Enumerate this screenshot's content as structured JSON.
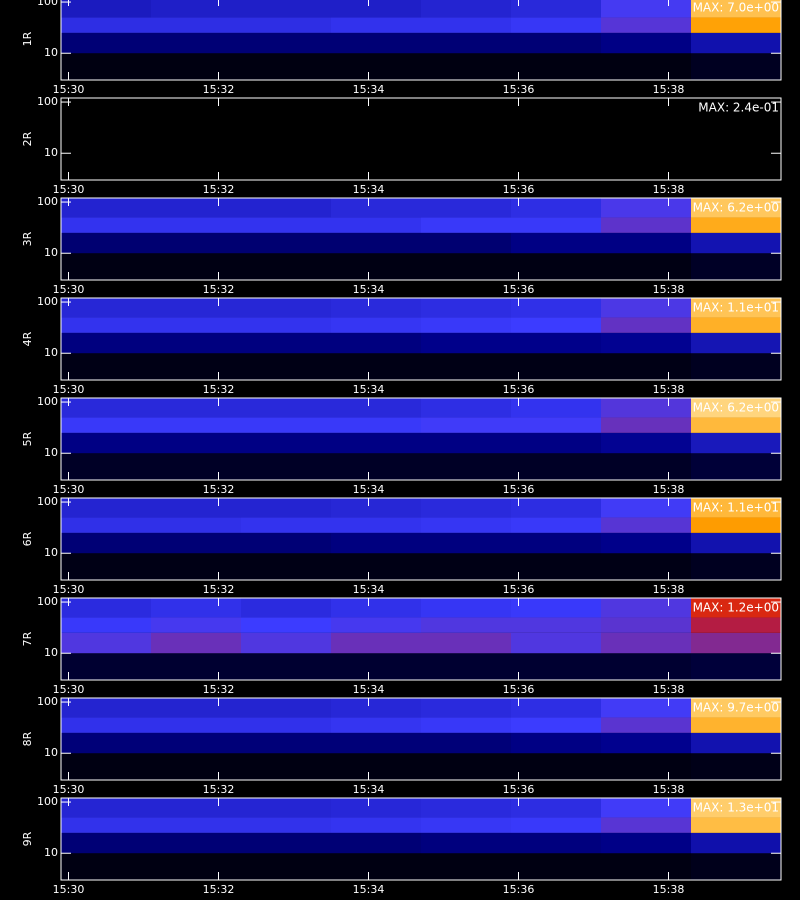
{
  "chart_data": [
    {
      "type": "heatmap",
      "ylabel": "1R",
      "max_label": "MAX: 7.0e+00",
      "max": 7.0,
      "log_y": true,
      "xlim": [
        929.9,
        939.5
      ],
      "xticks": [
        {
          "value": 930,
          "label": "15:30"
        },
        {
          "value": 932,
          "label": "15:32"
        },
        {
          "value": 934,
          "label": "15:34"
        },
        {
          "value": 936,
          "label": "15:36"
        },
        {
          "value": 938,
          "label": "15:38"
        }
      ],
      "ylim": [
        3,
        120
      ],
      "yticks": [
        10,
        100
      ],
      "xbins": [
        929.9,
        931.1,
        932.3,
        933.5,
        934.7,
        935.9,
        937.1,
        938.3,
        939.5
      ],
      "ybins": [
        3,
        10,
        25,
        50,
        120
      ],
      "values": [
        [
          0.1,
          0.1,
          0.1,
          0.1,
          0.1,
          0.1,
          0.1,
          0.2
        ],
        [
          0.7,
          0.7,
          0.7,
          0.7,
          0.7,
          0.7,
          0.8,
          1.2
        ],
        [
          1.8,
          1.8,
          1.8,
          1.9,
          1.9,
          2,
          2.4,
          5.5
        ],
        [
          1.4,
          1.5,
          1.5,
          1.5,
          1.6,
          1.7,
          2.2,
          6
        ]
      ]
    },
    {
      "type": "heatmap",
      "ylabel": "2R",
      "max_label": "MAX: 2.4e-01",
      "max": 0.24,
      "log_y": true,
      "xlim": [
        929.9,
        939.5
      ],
      "xticks": [
        {
          "value": 930,
          "label": "15:30"
        },
        {
          "value": 932,
          "label": "15:32"
        },
        {
          "value": 934,
          "label": "15:34"
        },
        {
          "value": 936,
          "label": "15:36"
        },
        {
          "value": 938,
          "label": "15:38"
        }
      ],
      "ylim": [
        3,
        120
      ],
      "yticks": [
        10,
        100
      ],
      "xbins": [
        929.9,
        931.1,
        932.3,
        933.5,
        934.7,
        935.9,
        937.1,
        938.3,
        939.5
      ],
      "ybins": [
        3,
        10,
        25,
        50,
        120
      ],
      "values": [
        [
          0,
          0,
          0,
          0,
          0,
          0,
          0,
          0
        ],
        [
          0,
          0,
          0,
          0,
          0,
          0,
          0,
          0
        ],
        [
          0,
          0,
          0,
          0,
          0,
          0,
          0,
          0
        ],
        [
          0,
          0,
          0,
          0,
          0,
          0,
          0,
          0
        ]
      ]
    },
    {
      "type": "heatmap",
      "ylabel": "3R",
      "max_label": "MAX: 6.2e+00",
      "max": 6.2,
      "log_y": true,
      "xlim": [
        929.9,
        939.5
      ],
      "xticks": [
        {
          "value": 930,
          "label": "15:30"
        },
        {
          "value": 932,
          "label": "15:32"
        },
        {
          "value": 934,
          "label": "15:34"
        },
        {
          "value": 936,
          "label": "15:36"
        },
        {
          "value": 938,
          "label": "15:38"
        }
      ],
      "ylim": [
        3,
        120
      ],
      "yticks": [
        10,
        100
      ],
      "xbins": [
        929.9,
        931.1,
        932.3,
        933.5,
        934.7,
        935.9,
        937.1,
        938.3,
        939.5
      ],
      "ybins": [
        3,
        10,
        25,
        50,
        120
      ],
      "values": [
        [
          0.1,
          0.1,
          0.1,
          0.1,
          0.1,
          0.1,
          0.1,
          0.2
        ],
        [
          0.6,
          0.6,
          0.6,
          0.6,
          0.6,
          0.7,
          0.7,
          1.1
        ],
        [
          1.7,
          1.7,
          1.7,
          1.7,
          1.8,
          1.8,
          2.2,
          5
        ],
        [
          1.4,
          1.4,
          1.4,
          1.5,
          1.5,
          1.6,
          2,
          5.4
        ]
      ]
    },
    {
      "type": "heatmap",
      "ylabel": "4R",
      "max_label": "MAX: 1.1e+01",
      "max": 11,
      "log_y": true,
      "xlim": [
        929.9,
        939.5
      ],
      "xticks": [
        {
          "value": 930,
          "label": "15:30"
        },
        {
          "value": 932,
          "label": "15:32"
        },
        {
          "value": 934,
          "label": "15:34"
        },
        {
          "value": 936,
          "label": "15:36"
        },
        {
          "value": 938,
          "label": "15:38"
        }
      ],
      "ylim": [
        3,
        120
      ],
      "yticks": [
        10,
        100
      ],
      "xbins": [
        929.9,
        931.1,
        932.3,
        933.5,
        934.7,
        935.9,
        937.1,
        938.3,
        939.5
      ],
      "ybins": [
        3,
        10,
        25,
        50,
        120
      ],
      "values": [
        [
          0.2,
          0.2,
          0.2,
          0.2,
          0.2,
          0.2,
          0.2,
          0.3
        ],
        [
          1.2,
          1.2,
          1.2,
          1.2,
          1.3,
          1.3,
          1.4,
          2
        ],
        [
          3,
          3,
          3,
          3.1,
          3.2,
          3.3,
          4,
          9
        ],
        [
          2.6,
          2.6,
          2.6,
          2.7,
          2.8,
          2.9,
          3.6,
          9.5
        ]
      ]
    },
    {
      "type": "heatmap",
      "ylabel": "5R",
      "max_label": "MAX: 6.2e+00",
      "max": 6.2,
      "log_y": true,
      "xlim": [
        929.9,
        939.5
      ],
      "xticks": [
        {
          "value": 930,
          "label": "15:30"
        },
        {
          "value": 932,
          "label": "15:32"
        },
        {
          "value": 934,
          "label": "15:34"
        },
        {
          "value": 936,
          "label": "15:36"
        },
        {
          "value": 938,
          "label": "15:38"
        }
      ],
      "ylim": [
        3,
        120
      ],
      "yticks": [
        10,
        100
      ],
      "xbins": [
        929.9,
        931.1,
        932.3,
        933.5,
        934.7,
        935.9,
        937.1,
        938.3,
        939.5
      ],
      "ybins": [
        3,
        10,
        25,
        50,
        120
      ],
      "values": [
        [
          0.2,
          0.2,
          0.2,
          0.2,
          0.2,
          0.2,
          0.2,
          0.3
        ],
        [
          0.7,
          0.7,
          0.7,
          0.7,
          0.7,
          0.7,
          0.8,
          1.2
        ],
        [
          1.8,
          1.8,
          1.8,
          1.8,
          1.9,
          1.9,
          2.3,
          5.2
        ],
        [
          1.5,
          1.5,
          1.5,
          1.5,
          1.6,
          1.7,
          2.1,
          5.6
        ]
      ]
    },
    {
      "type": "heatmap",
      "ylabel": "6R",
      "max_label": "MAX: 1.1e+01",
      "max": 11,
      "log_y": true,
      "xlim": [
        929.9,
        939.5
      ],
      "xticks": [
        {
          "value": 930,
          "label": "15:30"
        },
        {
          "value": 932,
          "label": "15:32"
        },
        {
          "value": 934,
          "label": "15:34"
        },
        {
          "value": 936,
          "label": "15:36"
        },
        {
          "value": 938,
          "label": "15:38"
        }
      ],
      "ylim": [
        3,
        120
      ],
      "yticks": [
        10,
        100
      ],
      "xbins": [
        929.9,
        931.1,
        932.3,
        933.5,
        934.7,
        935.9,
        937.1,
        938.3,
        939.5
      ],
      "ybins": [
        3,
        10,
        25,
        50,
        120
      ],
      "values": [
        [
          0.2,
          0.2,
          0.2,
          0.2,
          0.2,
          0.2,
          0.2,
          0.3
        ],
        [
          1.1,
          1.1,
          1.1,
          1.2,
          1.2,
          1.2,
          1.3,
          1.9
        ],
        [
          2.9,
          2.9,
          3,
          3,
          3.1,
          3.2,
          3.8,
          8.5
        ],
        [
          2.5,
          2.5,
          2.5,
          2.6,
          2.7,
          2.8,
          3.4,
          9.2
        ]
      ]
    },
    {
      "type": "heatmap",
      "ylabel": "7R",
      "max_label": "MAX: 1.2e+00",
      "max": 1.2,
      "log_y": true,
      "xlim": [
        929.9,
        939.5
      ],
      "xticks": [
        {
          "value": 930,
          "label": "15:30"
        },
        {
          "value": 932,
          "label": "15:32"
        },
        {
          "value": 934,
          "label": "15:34"
        },
        {
          "value": 936,
          "label": "15:36"
        },
        {
          "value": 938,
          "label": "15:38"
        }
      ],
      "ylim": [
        3,
        120
      ],
      "yticks": [
        10,
        100
      ],
      "xbins": [
        929.9,
        931.1,
        932.3,
        933.5,
        934.7,
        935.9,
        937.1,
        938.3,
        939.5
      ],
      "ybins": [
        3,
        10,
        25,
        50,
        120
      ],
      "values": [
        [
          0.05,
          0.05,
          0.05,
          0.05,
          0.05,
          0.05,
          0.05,
          0.06
        ],
        [
          0.4,
          0.45,
          0.4,
          0.45,
          0.45,
          0.4,
          0.45,
          0.5
        ],
        [
          0.35,
          0.38,
          0.36,
          0.38,
          0.4,
          0.4,
          0.42,
          0.6
        ],
        [
          0.3,
          0.32,
          0.3,
          0.32,
          0.34,
          0.35,
          0.4,
          0.7
        ]
      ]
    },
    {
      "type": "heatmap",
      "ylabel": "8R",
      "max_label": "MAX: 9.7e+00",
      "max": 9.7,
      "log_y": true,
      "xlim": [
        929.9,
        939.5
      ],
      "xticks": [
        {
          "value": 930,
          "label": "15:30"
        },
        {
          "value": 932,
          "label": "15:32"
        },
        {
          "value": 934,
          "label": "15:34"
        },
        {
          "value": 936,
          "label": "15:36"
        },
        {
          "value": 938,
          "label": "15:38"
        }
      ],
      "ylim": [
        3,
        120
      ],
      "yticks": [
        10,
        100
      ],
      "xbins": [
        929.9,
        931.1,
        932.3,
        933.5,
        934.7,
        935.9,
        937.1,
        938.3,
        939.5
      ],
      "ybins": [
        3,
        10,
        25,
        50,
        120
      ],
      "values": [
        [
          0.15,
          0.15,
          0.15,
          0.15,
          0.15,
          0.15,
          0.15,
          0.2
        ],
        [
          1,
          1,
          1,
          1,
          1,
          1.1,
          1.2,
          1.7
        ],
        [
          2.6,
          2.6,
          2.6,
          2.7,
          2.8,
          2.9,
          3.4,
          8
        ],
        [
          2.2,
          2.2,
          2.2,
          2.3,
          2.4,
          2.5,
          3,
          8.5
        ]
      ]
    },
    {
      "type": "heatmap",
      "ylabel": "9R",
      "max_label": "MAX: 1.3e+01",
      "max": 13,
      "log_y": true,
      "xlim": [
        929.9,
        939.5
      ],
      "xticks": [
        {
          "value": 930,
          "label": "15:30"
        },
        {
          "value": 932,
          "label": "15:32"
        },
        {
          "value": 934,
          "label": "15:34"
        },
        {
          "value": 936,
          "label": "15:36"
        },
        {
          "value": 938,
          "label": "15:38"
        }
      ],
      "ylim": [
        3,
        120
      ],
      "yticks": [
        10,
        100
      ],
      "xbins": [
        929.9,
        931.1,
        932.3,
        933.5,
        934.7,
        935.9,
        937.1,
        938.3,
        939.5
      ],
      "ybins": [
        3,
        10,
        25,
        50,
        120
      ],
      "values": [
        [
          0.2,
          0.2,
          0.2,
          0.2,
          0.2,
          0.2,
          0.2,
          0.3
        ],
        [
          1.3,
          1.3,
          1.3,
          1.3,
          1.4,
          1.4,
          1.5,
          2.2
        ],
        [
          3.5,
          3.5,
          3.5,
          3.6,
          3.7,
          3.8,
          4.5,
          11
        ],
        [
          3,
          3,
          3,
          3.1,
          3.2,
          3.3,
          4,
          11.5
        ]
      ]
    }
  ]
}
